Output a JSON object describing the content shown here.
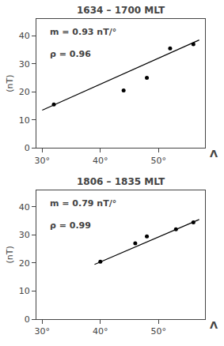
{
  "chart_data": [
    {
      "type": "scatter",
      "title": "1634 – 1700 MLT",
      "ylabel": "(nT)",
      "xlabel": "Λ",
      "series": [
        {
          "type": "scatter",
          "color": "#000000",
          "x": [
            32,
            44,
            48,
            52,
            56
          ],
          "values": [
            15.5,
            20.5,
            25.0,
            35.5,
            37.0
          ]
        },
        {
          "type": "line",
          "color": "#000000",
          "x": [
            30,
            57
          ],
          "values": [
            13.5,
            38.5
          ]
        }
      ],
      "annotations": [
        "m = 0.93 nT/°",
        "ρ = 0.96"
      ],
      "xlim": [
        29,
        58
      ],
      "ylim": [
        0,
        46
      ],
      "xticks": [
        {
          "value": 30,
          "label": "30°"
        },
        {
          "value": 40,
          "label": "40°"
        },
        {
          "value": 50,
          "label": "50°"
        }
      ],
      "yticks": [
        0,
        10,
        20,
        30,
        40
      ],
      "grid": false,
      "background": "#ffffff"
    },
    {
      "type": "scatter",
      "title": "1806 – 1835 MLT",
      "ylabel": "(nT)",
      "xlabel": "Λ",
      "series": [
        {
          "type": "scatter",
          "color": "#000000",
          "x": [
            40,
            46,
            48,
            53,
            56
          ],
          "values": [
            20.5,
            27.0,
            29.5,
            32.0,
            34.5
          ]
        },
        {
          "type": "line",
          "color": "#000000",
          "x": [
            39,
            57
          ],
          "values": [
            19.5,
            35.5
          ]
        }
      ],
      "annotations": [
        "m = 0.79 nT/°",
        "ρ = 0.99"
      ],
      "xlim": [
        29,
        58
      ],
      "ylim": [
        0,
        46
      ],
      "xticks": [
        {
          "value": 30,
          "label": "30°"
        },
        {
          "value": 40,
          "label": "40°"
        },
        {
          "value": 50,
          "label": "50°"
        }
      ],
      "yticks": [
        0,
        10,
        20,
        30,
        40
      ],
      "grid": false,
      "background": "#ffffff"
    }
  ]
}
